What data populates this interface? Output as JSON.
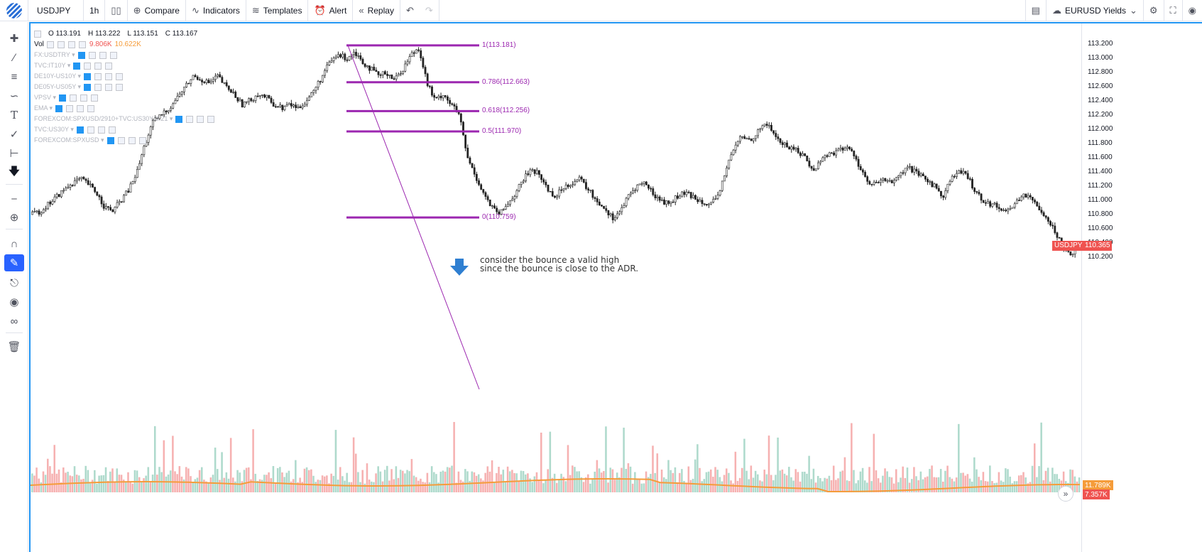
{
  "toolbar": {
    "symbol": "USDJPY",
    "interval": "1h",
    "compare": "Compare",
    "indicators": "Indicators",
    "templates": "Templates",
    "alert": "Alert",
    "replay": "Replay",
    "layout_name": "EURUSD Yields"
  },
  "legend": {
    "open": "O 113.191",
    "high": "H 113.222",
    "low": "L 113.151",
    "close": "C 113.167",
    "vol_label": "Vol",
    "vol_value_1": "9.806K",
    "vol_value_2": "10.622K",
    "studies": [
      "FX:USDTRY",
      "TVC:IT10Y",
      "DE10Y-US10Y",
      "DE05Y-US05Y",
      "VPSV",
      "EMA",
      "FOREXCOM:SPXUSD/2910+TVC:US30Y/3.21",
      "TVC:US30Y",
      "FOREXCOM:SPXUSD"
    ]
  },
  "annotation": {
    "line1": "consider the bounce a valid high",
    "line2": "since the bounce is close to the ADR."
  },
  "fib_levels": [
    {
      "label": "1(113.181)",
      "value": 113.181
    },
    {
      "label": "0.786(112.663)",
      "value": 112.663
    },
    {
      "label": "0.618(112.256)",
      "value": 112.256
    },
    {
      "label": "0.5(111.970)",
      "value": 111.97
    },
    {
      "label": "0(110.759)",
      "value": 110.759
    }
  ],
  "price_axis": {
    "ticks": [
      "113.200",
      "113.000",
      "112.800",
      "112.600",
      "112.400",
      "112.200",
      "112.000",
      "111.800",
      "111.600",
      "111.400",
      "111.200",
      "111.000",
      "110.800",
      "110.600",
      "110.400",
      "110.200"
    ],
    "last_price_symbol": "USDJPY",
    "last_price": "110.365",
    "vol_label_1": "11.789K",
    "vol_label_2": "7.357K"
  },
  "colors": {
    "accent": "#2962ff",
    "fib": "#9c27b0",
    "up": "#26a69a",
    "down": "#ef5350",
    "candle": "#222222",
    "ema": "#f59c3a"
  },
  "chart_data": {
    "type": "candlestick",
    "symbol": "USDJPY",
    "interval": "1h",
    "ylim": [
      110.15,
      113.27
    ],
    "close_path": [
      110.8,
      110.85,
      110.95,
      111.05,
      111.15,
      111.25,
      111.3,
      111.22,
      111.1,
      110.9,
      110.85,
      111.0,
      111.15,
      111.4,
      111.8,
      112.1,
      112.2,
      112.3,
      112.45,
      112.6,
      112.75,
      112.7,
      112.65,
      112.75,
      112.6,
      112.5,
      112.35,
      112.4,
      112.5,
      112.45,
      112.35,
      112.3,
      112.35,
      112.3,
      112.4,
      112.55,
      112.75,
      112.95,
      113.05,
      113.0,
      113.1,
      112.95,
      112.85,
      112.75,
      112.8,
      112.7,
      112.85,
      113.05,
      113.15,
      112.65,
      112.4,
      112.5,
      112.35,
      112.2,
      111.6,
      111.35,
      111.1,
      110.9,
      110.8,
      110.95,
      111.1,
      111.3,
      111.45,
      111.35,
      111.15,
      111.05,
      111.2,
      111.25,
      111.3,
      111.15,
      111.0,
      110.9,
      110.75,
      110.85,
      111.05,
      111.2,
      111.25,
      111.1,
      111.0,
      110.95,
      111.05,
      111.1,
      111.05,
      111.0,
      110.95,
      111.0,
      111.4,
      111.7,
      111.9,
      111.85,
      111.95,
      112.1,
      111.95,
      111.8,
      111.75,
      111.7,
      111.6,
      111.4,
      111.6,
      111.65,
      111.7,
      111.75,
      111.65,
      111.4,
      111.2,
      111.25,
      111.3,
      111.25,
      111.4,
      111.45,
      111.35,
      111.3,
      111.2,
      111.05,
      111.3,
      111.4,
      111.35,
      111.15,
      111.0,
      110.95,
      110.9,
      110.85,
      110.95,
      111.1,
      111.0,
      110.9,
      110.75,
      110.55,
      110.35,
      110.25,
      110.37
    ]
  }
}
